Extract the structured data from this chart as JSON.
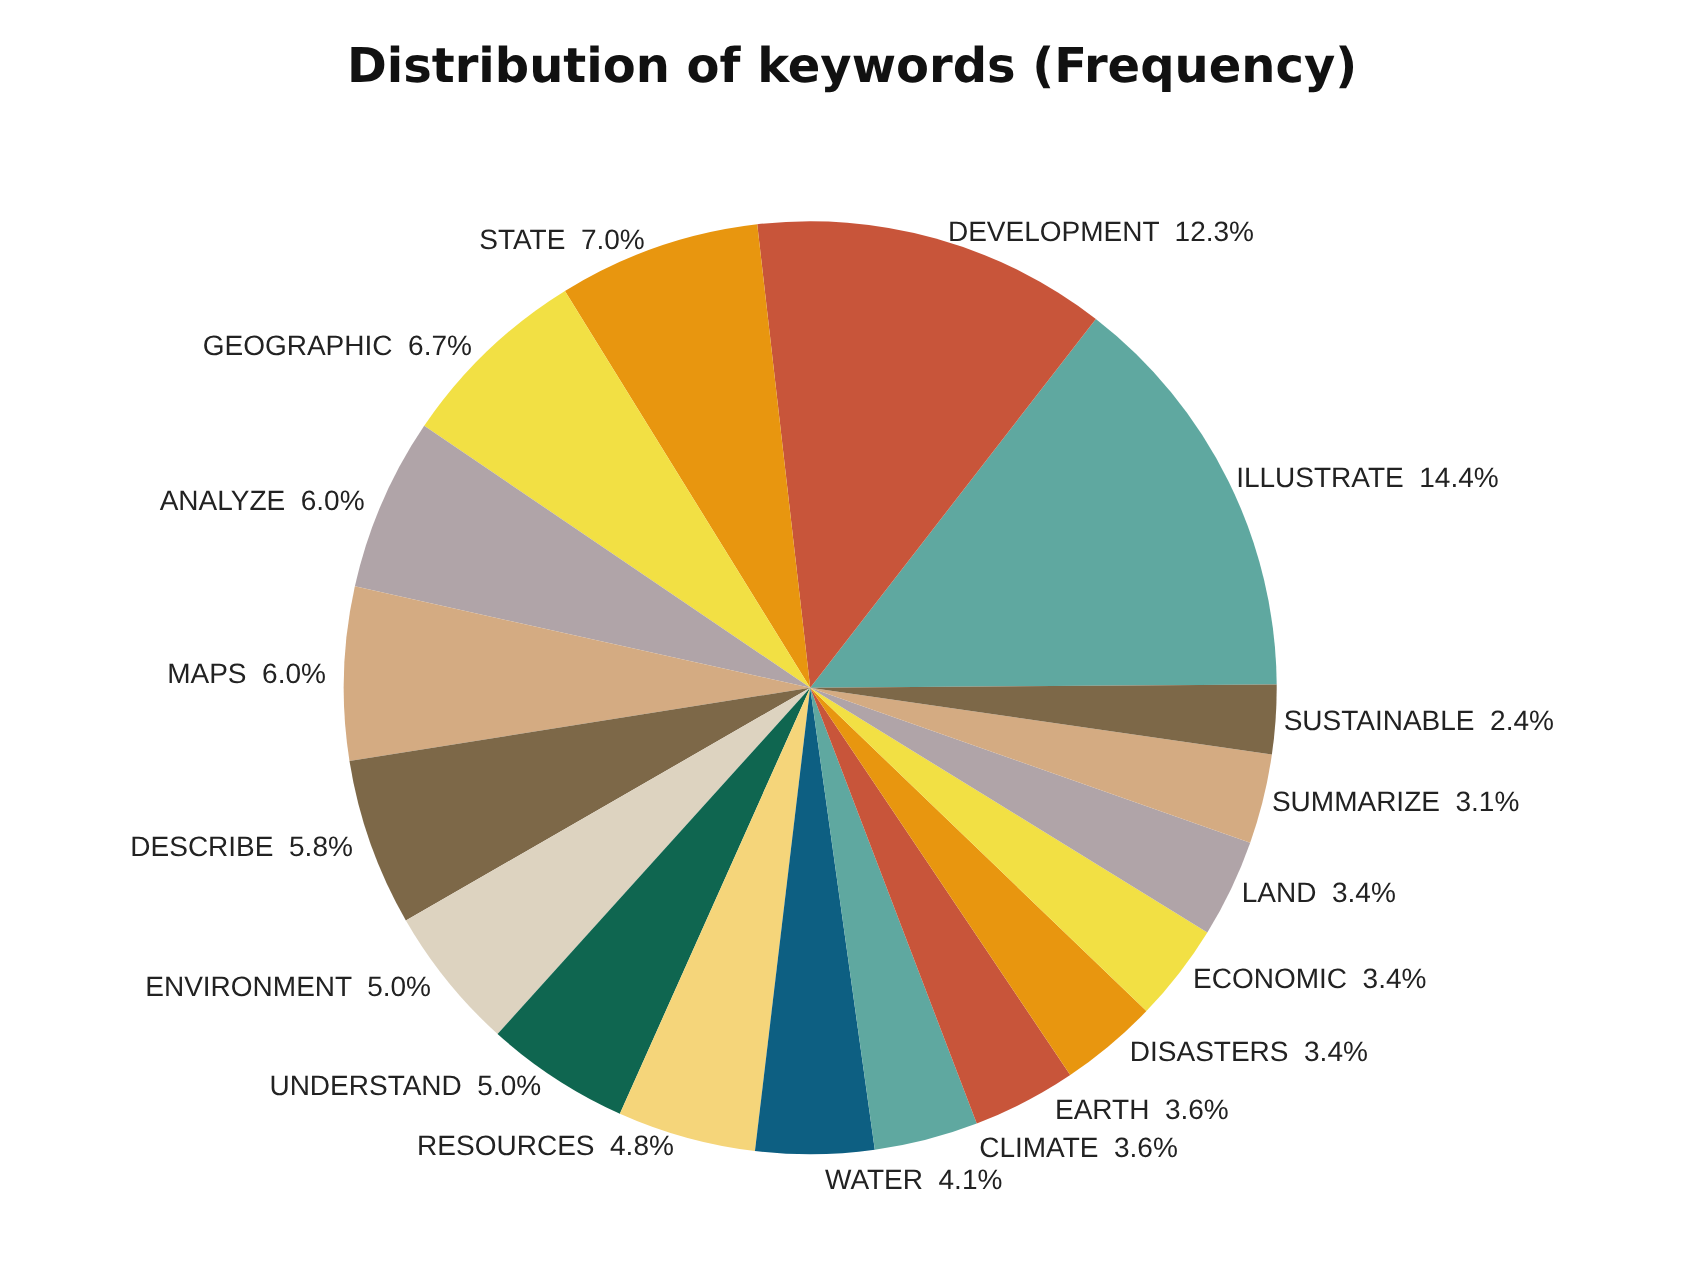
{
  "chart_data": {
    "type": "pie",
    "title": "Distribution of keywords (Frequency)",
    "categories": [
      "ILLUSTRATE",
      "DEVELOPMENT",
      "STATE",
      "GEOGRAPHIC",
      "ANALYZE",
      "MAPS",
      "DESCRIBE",
      "ENVIRONMENT",
      "UNDERSTAND",
      "RESOURCES",
      "WATER",
      "CLIMATE",
      "EARTH",
      "DISASTERS",
      "ECONOMIC",
      "LAND",
      "SUMMARIZE",
      "SUSTAINABLE"
    ],
    "values": [
      14.4,
      12.3,
      7.0,
      6.7,
      6.0,
      6.0,
      5.8,
      5.0,
      5.0,
      4.8,
      4.1,
      3.6,
      3.6,
      3.4,
      3.4,
      3.4,
      3.1,
      2.4
    ],
    "value_labels": [
      "14.4%",
      "12.3%",
      "7.0%",
      "6.7%",
      "6.0%",
      "6.0%",
      "5.8%",
      "5.0%",
      "5.0%",
      "4.8%",
      "4.1%",
      "3.6%",
      "3.6%",
      "3.4%",
      "3.4%",
      "3.4%",
      "3.1%",
      "2.4%"
    ],
    "colors": [
      "#5fa8a0",
      "#c8553a",
      "#e8960f",
      "#f2e044",
      "#b0a4a8",
      "#d4ab82",
      "#7d6848",
      "#ddd3c0",
      "#0f6650",
      "#f5d57a",
      "#0d5f82",
      "#5fa8a0",
      "#c8553a",
      "#e8960f",
      "#f2e044",
      "#b0a4a8",
      "#d4ab82",
      "#7d6848"
    ],
    "legend": false
  }
}
